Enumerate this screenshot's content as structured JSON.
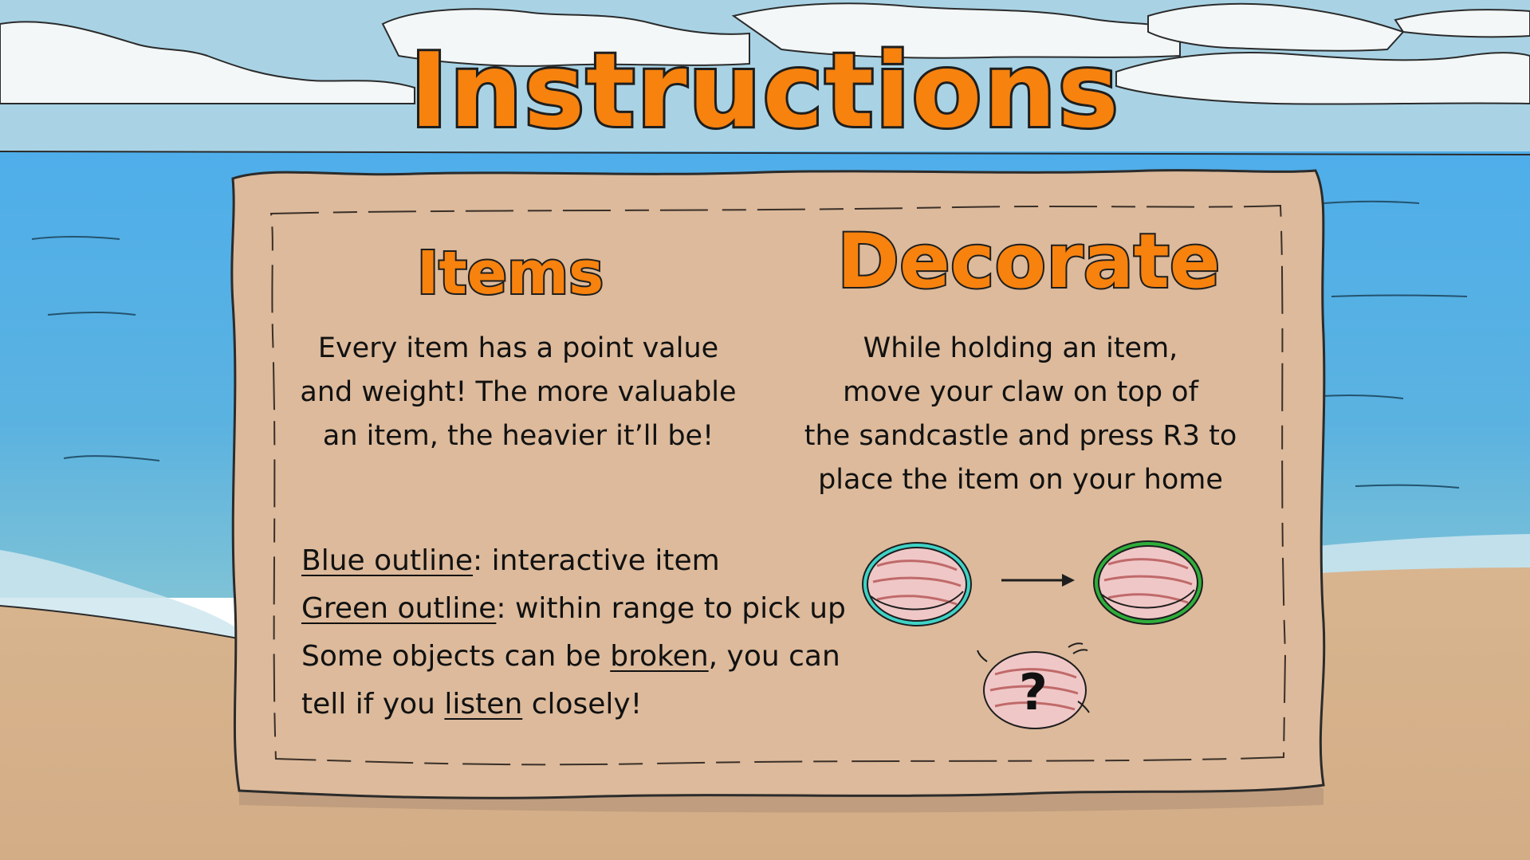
{
  "title": "Instructions",
  "items": {
    "heading": "Items",
    "description": [
      "Every item has a point value",
      "and weight! The more valuable",
      "an item, the heavier it’ll be!"
    ]
  },
  "decorate": {
    "heading": "Decorate",
    "description": [
      "While holding an item,",
      "move your claw on top of",
      "the sandcastle and press R3 to",
      "place the item on your home"
    ]
  },
  "hints": {
    "blue_term": "Blue outline",
    "blue_rest": ": interactive item",
    "green_term": "Green outline",
    "green_rest": ": within range to pick up",
    "broken_pre": "Some objects can be ",
    "broken_term": "broken",
    "broken_post": ", you can",
    "listen_pre": "tell if you ",
    "listen_term": "listen",
    "listen_post": " closely!"
  },
  "illustration": {
    "arrow_icon": "right-arrow-icon",
    "question_mark": "?"
  },
  "colors": {
    "title_orange": "#f7820e",
    "parchment": "#dcb99a",
    "sea": "#58b0e6",
    "sky": "#a9d3e5",
    "sand": "#d9b691",
    "blue_outline": "#3fd3c7",
    "green_outline": "#2fae3a",
    "shell": "#f0c7c7"
  }
}
